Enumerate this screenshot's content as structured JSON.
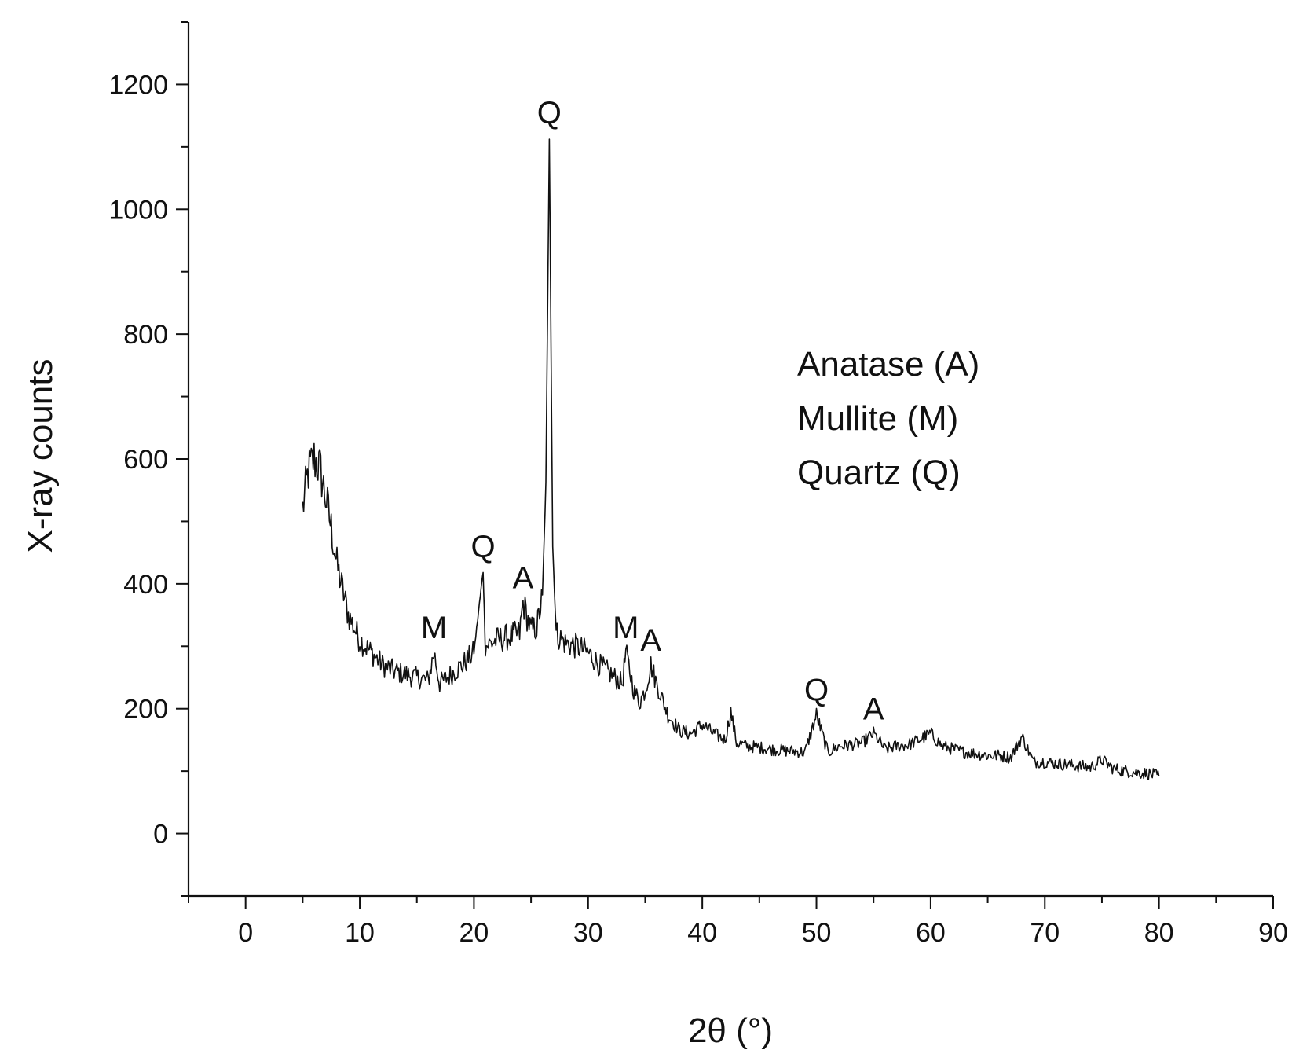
{
  "chart_data": {
    "type": "line",
    "title": "",
    "xlabel": "2θ (°)",
    "ylabel": "X-ray counts",
    "xlim": [
      -5,
      90
    ],
    "ylim": [
      -100,
      1300
    ],
    "xticks": [
      0,
      10,
      20,
      30,
      40,
      50,
      60,
      70,
      80,
      90
    ],
    "yticks": [
      0,
      200,
      400,
      600,
      800,
      1000,
      1200
    ],
    "grid": false,
    "legend_position": "upper-right",
    "legend_entries": [
      "Anatase (A)",
      "Mullite (M)",
      "Quartz (Q)"
    ],
    "series": [
      {
        "x": [
          5,
          5.5,
          6,
          6.5,
          7,
          7.5,
          8,
          8.5,
          9,
          10,
          11,
          12,
          13,
          14,
          15,
          16,
          16.5,
          17,
          18,
          19,
          20,
          20.8,
          21,
          22,
          23,
          24,
          24.3,
          25,
          25.5,
          26,
          26.3,
          26.6,
          26.9,
          27.2,
          28,
          29,
          30,
          31,
          32,
          33,
          33.3,
          34,
          34.5,
          35,
          35.5,
          36,
          37,
          38,
          39,
          40,
          41,
          42,
          42.5,
          43,
          44,
          45,
          46,
          47,
          48,
          49,
          50,
          51,
          52,
          53,
          54,
          55,
          56,
          57,
          58,
          59,
          60,
          61,
          62,
          63,
          64,
          65,
          66,
          67,
          68,
          69,
          70,
          71,
          72,
          73,
          74,
          75,
          76,
          77,
          78,
          79,
          80
        ],
        "y": [
          520,
          580,
          600,
          585,
          540,
          490,
          430,
          390,
          350,
          310,
          290,
          270,
          260,
          255,
          250,
          245,
          290,
          240,
          255,
          270,
          290,
          420,
          300,
          310,
          315,
          320,
          370,
          325,
          330,
          380,
          560,
          1115,
          460,
          320,
          305,
          300,
          290,
          270,
          255,
          240,
          290,
          230,
          210,
          230,
          270,
          240,
          190,
          165,
          160,
          175,
          160,
          150,
          195,
          145,
          140,
          138,
          135,
          133,
          132,
          130,
          190,
          130,
          140,
          142,
          145,
          160,
          135,
          140,
          142,
          150,
          160,
          140,
          135,
          130,
          128,
          125,
          125,
          122,
          155,
          115,
          115,
          112,
          110,
          108,
          106,
          118,
          104,
          100,
          98,
          96,
          92
        ]
      }
    ],
    "annotations": [
      {
        "text": "M",
        "x": 16.5,
        "y": 290
      },
      {
        "text": "Q",
        "x": 20.8,
        "y": 420
      },
      {
        "text": "A",
        "x": 24.3,
        "y": 370
      },
      {
        "text": "Q",
        "x": 26.6,
        "y": 1115
      },
      {
        "text": "M",
        "x": 33.3,
        "y": 290
      },
      {
        "text": "A",
        "x": 35.5,
        "y": 270
      },
      {
        "text": "Q",
        "x": 50,
        "y": 190
      },
      {
        "text": "A",
        "x": 55,
        "y": 160
      }
    ]
  }
}
